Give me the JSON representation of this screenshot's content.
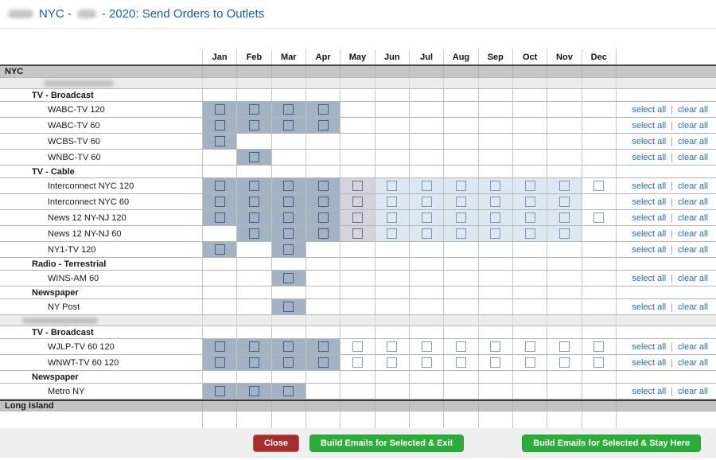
{
  "title": {
    "part1": "NYC -",
    "part2": "- 2020: Send Orders to Outlets"
  },
  "months": [
    "Jan",
    "Feb",
    "Mar",
    "Apr",
    "May",
    "Jun",
    "Jul",
    "Aug",
    "Sep",
    "Oct",
    "Nov",
    "Dec"
  ],
  "links": {
    "select_all": "select all",
    "divider": "|",
    "clear_all": "clear all"
  },
  "cell_states": {
    "d": "selected-slate-blue-with-checkbox",
    "g": "selected-gray-lavender-with-checkbox",
    "b": "selected-light-blue-with-checkbox",
    "w": "white-with-checkbox",
    "": "empty"
  },
  "rows": [
    {
      "type": "market",
      "label": "NYC"
    },
    {
      "type": "redacted",
      "blob_indent": 55,
      "blob_width": 88
    },
    {
      "type": "category",
      "label": "TV - Broadcast"
    },
    {
      "type": "outlet",
      "label": "WABC-TV 120",
      "cells": [
        "d",
        "d",
        "d",
        "d",
        "",
        "",
        "",
        "",
        "",
        "",
        "",
        ""
      ]
    },
    {
      "type": "outlet",
      "label": "WABC-TV 60",
      "cells": [
        "d",
        "d",
        "d",
        "d",
        "",
        "",
        "",
        "",
        "",
        "",
        "",
        ""
      ]
    },
    {
      "type": "outlet",
      "label": "WCBS-TV 60",
      "cells": [
        "d",
        "",
        "",
        "",
        "",
        "",
        "",
        "",
        "",
        "",
        "",
        ""
      ]
    },
    {
      "type": "outlet",
      "label": "WNBC-TV 60",
      "cells": [
        "",
        "d",
        "",
        "",
        "",
        "",
        "",
        "",
        "",
        "",
        "",
        ""
      ]
    },
    {
      "type": "category",
      "label": "TV - Cable"
    },
    {
      "type": "outlet",
      "label": "Interconnect NYC 120",
      "cells": [
        "d",
        "d",
        "d",
        "d",
        "g",
        "b",
        "b",
        "b",
        "b",
        "b",
        "b",
        "w"
      ]
    },
    {
      "type": "outlet",
      "label": "Interconnect NYC 60",
      "cells": [
        "d",
        "d",
        "d",
        "d",
        "g",
        "b",
        "b",
        "b",
        "b",
        "b",
        "b",
        ""
      ]
    },
    {
      "type": "outlet",
      "label": "News 12 NY-NJ 120",
      "cells": [
        "d",
        "d",
        "d",
        "d",
        "g",
        "b",
        "b",
        "b",
        "b",
        "b",
        "b",
        "w"
      ]
    },
    {
      "type": "outlet",
      "label": "News 12 NY-NJ 60",
      "cells": [
        "",
        "d",
        "d",
        "d",
        "g",
        "b",
        "b",
        "b",
        "b",
        "b",
        "b",
        ""
      ]
    },
    {
      "type": "outlet",
      "label": "NY1-TV 120",
      "cells": [
        "d",
        "",
        "d",
        "",
        "",
        "",
        "",
        "",
        "",
        "",
        "",
        ""
      ]
    },
    {
      "type": "category",
      "label": "Radio - Terrestrial"
    },
    {
      "type": "outlet",
      "label": "WINS-AM 60",
      "cells": [
        "",
        "",
        "d",
        "",
        "",
        "",
        "",
        "",
        "",
        "",
        "",
        ""
      ]
    },
    {
      "type": "category",
      "label": "Newspaper"
    },
    {
      "type": "outlet",
      "label": "NY Post",
      "cells": [
        "",
        "",
        "d",
        "",
        "",
        "",
        "",
        "",
        "",
        "",
        "",
        ""
      ]
    },
    {
      "type": "redacted",
      "blob_indent": 28,
      "blob_width": 95
    },
    {
      "type": "category",
      "label": "TV - Broadcast"
    },
    {
      "type": "outlet",
      "label": "WJLP-TV 60 120",
      "cells": [
        "d",
        "d",
        "d",
        "d",
        "w",
        "w",
        "w",
        "w",
        "w",
        "w",
        "w",
        "w"
      ]
    },
    {
      "type": "outlet",
      "label": "WNWT-TV 60 120",
      "cells": [
        "d",
        "d",
        "d",
        "d",
        "w",
        "w",
        "w",
        "w",
        "w",
        "w",
        "w",
        "w"
      ]
    },
    {
      "type": "category",
      "label": "Newspaper"
    },
    {
      "type": "outlet",
      "label": "Metro NY",
      "cells": [
        "d",
        "d",
        "d",
        "",
        "",
        "",
        "",
        "",
        "",
        "",
        "",
        ""
      ]
    },
    {
      "type": "market",
      "label": "Long Island",
      "strong_top": true
    },
    {
      "type": "clipped",
      "marks": "· ·· ·  · ··"
    }
  ],
  "footer": {
    "close": "Close",
    "build_exit": "Build Emails for Selected & Exit",
    "build_stay": "Build Emails for Selected & Stay Here"
  },
  "colors": {
    "title_blue": "#1b5faa",
    "link_blue": "#2a6cb1",
    "selected_dark": "#a4b3c3",
    "selected_gray": "#d7d3dc",
    "selected_light_blue": "#dde8f3",
    "market_header_bg": "#c6c6c6",
    "redacted_row_bg": "#ececec",
    "footer_bg": "#efefef",
    "close_red": "#a72c2c",
    "build_green": "#2bad3a"
  }
}
